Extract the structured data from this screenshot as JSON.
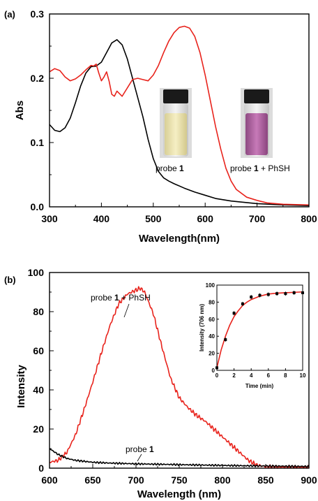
{
  "chart_data": [
    {
      "type": "line",
      "panel_label": "(a)",
      "xlabel": "Wavelength(nm)",
      "ylabel": "Abs",
      "xlim": [
        300,
        800
      ],
      "ylim": [
        0.0,
        0.3
      ],
      "x_ticks": [
        "300",
        "400",
        "500",
        "600",
        "700",
        "800"
      ],
      "y_ticks": [
        "0.0",
        "0.1",
        "0.2",
        "0.3"
      ],
      "series": [
        {
          "color": "#000000",
          "x": [
            300,
            310,
            320,
            330,
            340,
            350,
            360,
            370,
            380,
            390,
            400,
            410,
            420,
            430,
            440,
            450,
            460,
            470,
            480,
            490,
            500,
            510,
            520,
            530,
            540,
            560,
            580,
            600,
            620,
            650,
            700,
            750,
            800
          ],
          "y": [
            0.128,
            0.119,
            0.117,
            0.123,
            0.138,
            0.162,
            0.188,
            0.208,
            0.218,
            0.219,
            0.225,
            0.24,
            0.255,
            0.26,
            0.252,
            0.23,
            0.2,
            0.17,
            0.14,
            0.105,
            0.075,
            0.055,
            0.045,
            0.04,
            0.036,
            0.029,
            0.023,
            0.018,
            0.013,
            0.009,
            0.005,
            0.003,
            0.002
          ]
        },
        {
          "color": "#e8231c",
          "x": [
            300,
            310,
            320,
            330,
            340,
            350,
            360,
            370,
            380,
            385,
            390,
            395,
            400,
            405,
            410,
            415,
            420,
            425,
            430,
            440,
            450,
            460,
            470,
            480,
            490,
            500,
            510,
            520,
            530,
            540,
            550,
            560,
            570,
            580,
            590,
            600,
            610,
            620,
            630,
            640,
            650,
            660,
            680,
            700,
            720,
            750,
            800
          ],
          "y": [
            0.21,
            0.215,
            0.212,
            0.202,
            0.196,
            0.199,
            0.205,
            0.213,
            0.22,
            0.219,
            0.222,
            0.208,
            0.196,
            0.202,
            0.21,
            0.195,
            0.175,
            0.172,
            0.18,
            0.172,
            0.185,
            0.198,
            0.2,
            0.198,
            0.196,
            0.205,
            0.22,
            0.24,
            0.258,
            0.271,
            0.279,
            0.281,
            0.278,
            0.265,
            0.24,
            0.205,
            0.165,
            0.125,
            0.09,
            0.06,
            0.04,
            0.027,
            0.015,
            0.01,
            0.006,
            0.004,
            0.003
          ]
        }
      ],
      "annotations": {
        "vial_left_label_pre": "probe ",
        "vial_left_label_num": "1",
        "vial_right_label_pre": "probe ",
        "vial_right_label_num": "1",
        "vial_right_label_post": " + PhSH"
      },
      "vial_colors": {
        "left": "#eee6b6",
        "right": "#b46aa6"
      }
    },
    {
      "type": "line",
      "panel_label": "(b)",
      "xlabel": "Wavelength (nm)",
      "ylabel": "Intensity",
      "xlim": [
        600,
        900
      ],
      "ylim": [
        0,
        100
      ],
      "x_ticks": [
        "600",
        "650",
        "700",
        "750",
        "800",
        "850",
        "900"
      ],
      "y_ticks": [
        "0",
        "20",
        "40",
        "60",
        "80",
        "100"
      ],
      "series": [
        {
          "color": "#e8231c",
          "x": [
            600,
            610,
            620,
            630,
            640,
            650,
            660,
            670,
            680,
            690,
            700,
            705,
            710,
            720,
            730,
            740,
            750,
            760,
            770,
            780,
            790,
            800,
            810,
            820,
            830,
            840,
            850,
            860,
            870,
            880,
            890,
            900
          ],
          "y": [
            3,
            4,
            8,
            17,
            30,
            44,
            59,
            73,
            84,
            89,
            91,
            92,
            90,
            79,
            62,
            46,
            36,
            31,
            27,
            24,
            20,
            16,
            12,
            8,
            4,
            1.5,
            0.8,
            0.5,
            0.5,
            0.4,
            0.4,
            0.4
          ]
        },
        {
          "color": "#000000",
          "x": [
            600,
            610,
            620,
            630,
            640,
            650,
            670,
            700,
            750,
            800,
            850,
            900
          ],
          "y": [
            10,
            7,
            5,
            4,
            3.5,
            3,
            2.6,
            2.2,
            1.8,
            1.4,
            1.1,
            0.9
          ]
        }
      ],
      "annotations": {
        "red_label_pre": "probe ",
        "red_label_num": "1",
        "red_label_post": " + PhSH",
        "black_label_pre": "probe ",
        "black_label_num": "1"
      },
      "inset": {
        "type": "scatter",
        "xlabel": "Time (min)",
        "ylabel": "Intensity (706 nm)",
        "xlim": [
          0,
          10
        ],
        "ylim": [
          0,
          100
        ],
        "x_ticks": [
          "0",
          "2",
          "4",
          "6",
          "8",
          "10"
        ],
        "y_ticks": [
          "0",
          "20",
          "40",
          "60",
          "80",
          "100"
        ],
        "points": [
          {
            "x": 0,
            "y": 3
          },
          {
            "x": 1,
            "y": 36
          },
          {
            "x": 2,
            "y": 67
          },
          {
            "x": 3,
            "y": 78
          },
          {
            "x": 4,
            "y": 86
          },
          {
            "x": 5,
            "y": 88
          },
          {
            "x": 6,
            "y": 89
          },
          {
            "x": 7,
            "y": 90
          },
          {
            "x": 8,
            "y": 90
          },
          {
            "x": 9,
            "y": 91
          },
          {
            "x": 10,
            "y": 91
          }
        ],
        "fit": {
          "color": "#e8231c",
          "x": [
            0,
            0.5,
            1,
            1.5,
            2,
            2.5,
            3,
            3.5,
            4,
            5,
            6,
            7,
            8,
            9,
            10
          ],
          "y": [
            3,
            24,
            40,
            53,
            63,
            70,
            76,
            80,
            83,
            87,
            89.5,
            90.5,
            91,
            91.5,
            92
          ]
        }
      }
    }
  ]
}
